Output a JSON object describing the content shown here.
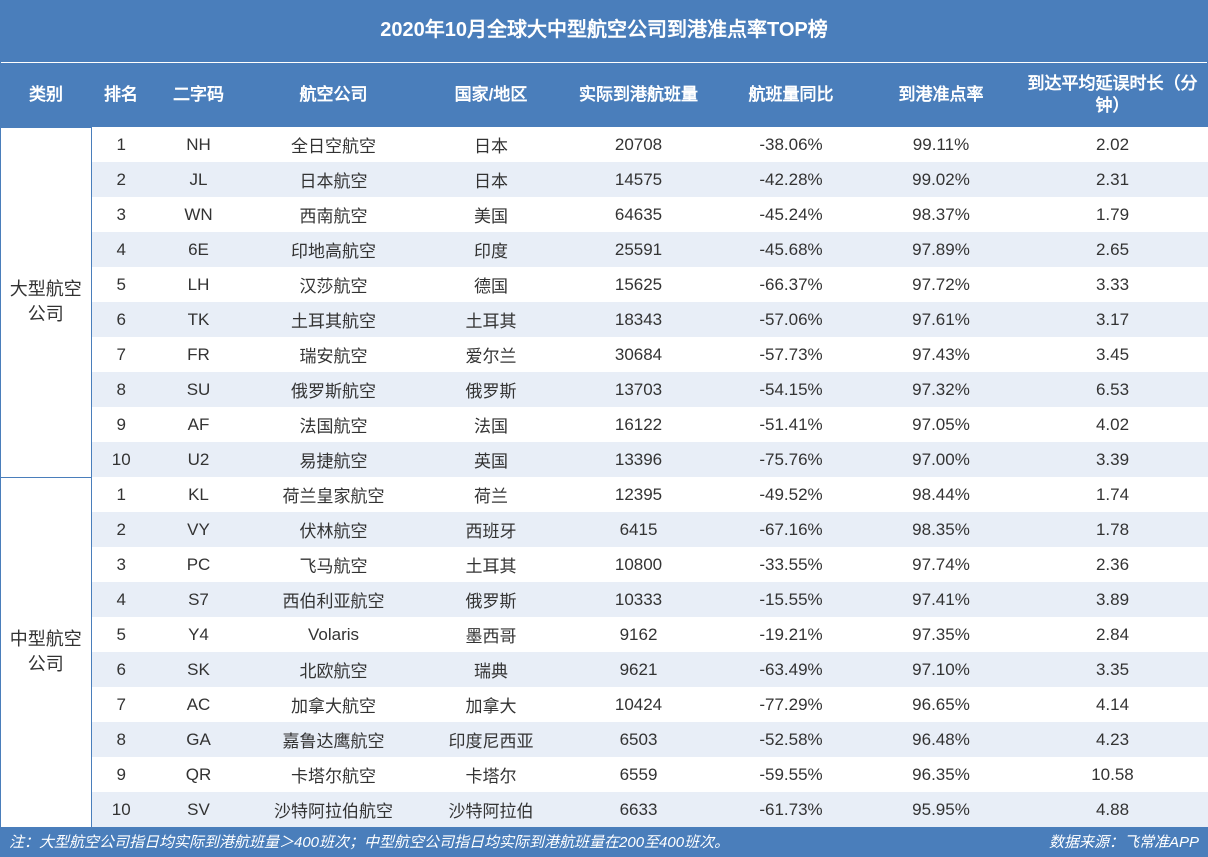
{
  "title": "2020年10月全球大中型航空公司到港准点率TOP榜",
  "columns": [
    "类别",
    "排名",
    "二字码",
    "航空公司",
    "国家/地区",
    "实际到港航班量",
    "航班量同比",
    "到港准点率",
    "到达平均延误时长（分钟）"
  ],
  "groups": [
    {
      "category": "大型航空公司",
      "rows": [
        {
          "rank": "1",
          "code": "NH",
          "name": "全日空航空",
          "country": "日本",
          "flights": "20708",
          "yoy": "-38.06%",
          "ontime": "99.11%",
          "delay": "2.02"
        },
        {
          "rank": "2",
          "code": "JL",
          "name": "日本航空",
          "country": "日本",
          "flights": "14575",
          "yoy": "-42.28%",
          "ontime": "99.02%",
          "delay": "2.31"
        },
        {
          "rank": "3",
          "code": "WN",
          "name": "西南航空",
          "country": "美国",
          "flights": "64635",
          "yoy": "-45.24%",
          "ontime": "98.37%",
          "delay": "1.79"
        },
        {
          "rank": "4",
          "code": "6E",
          "name": "印地高航空",
          "country": "印度",
          "flights": "25591",
          "yoy": "-45.68%",
          "ontime": "97.89%",
          "delay": "2.65"
        },
        {
          "rank": "5",
          "code": "LH",
          "name": "汉莎航空",
          "country": "德国",
          "flights": "15625",
          "yoy": "-66.37%",
          "ontime": "97.72%",
          "delay": "3.33"
        },
        {
          "rank": "6",
          "code": "TK",
          "name": "土耳其航空",
          "country": "土耳其",
          "flights": "18343",
          "yoy": "-57.06%",
          "ontime": "97.61%",
          "delay": "3.17"
        },
        {
          "rank": "7",
          "code": "FR",
          "name": "瑞安航空",
          "country": "爱尔兰",
          "flights": "30684",
          "yoy": "-57.73%",
          "ontime": "97.43%",
          "delay": "3.45"
        },
        {
          "rank": "8",
          "code": "SU",
          "name": "俄罗斯航空",
          "country": "俄罗斯",
          "flights": "13703",
          "yoy": "-54.15%",
          "ontime": "97.32%",
          "delay": "6.53"
        },
        {
          "rank": "9",
          "code": "AF",
          "name": "法国航空",
          "country": "法国",
          "flights": "16122",
          "yoy": "-51.41%",
          "ontime": "97.05%",
          "delay": "4.02"
        },
        {
          "rank": "10",
          "code": "U2",
          "name": "易捷航空",
          "country": "英国",
          "flights": "13396",
          "yoy": "-75.76%",
          "ontime": "97.00%",
          "delay": "3.39"
        }
      ]
    },
    {
      "category": "中型航空公司",
      "rows": [
        {
          "rank": "1",
          "code": "KL",
          "name": "荷兰皇家航空",
          "country": "荷兰",
          "flights": "12395",
          "yoy": "-49.52%",
          "ontime": "98.44%",
          "delay": "1.74"
        },
        {
          "rank": "2",
          "code": "VY",
          "name": "伏林航空",
          "country": "西班牙",
          "flights": "6415",
          "yoy": "-67.16%",
          "ontime": "98.35%",
          "delay": "1.78"
        },
        {
          "rank": "3",
          "code": "PC",
          "name": "飞马航空",
          "country": "土耳其",
          "flights": "10800",
          "yoy": "-33.55%",
          "ontime": "97.74%",
          "delay": "2.36"
        },
        {
          "rank": "4",
          "code": "S7",
          "name": "西伯利亚航空",
          "country": "俄罗斯",
          "flights": "10333",
          "yoy": "-15.55%",
          "ontime": "97.41%",
          "delay": "3.89"
        },
        {
          "rank": "5",
          "code": "Y4",
          "name": "Volaris",
          "country": "墨西哥",
          "flights": "9162",
          "yoy": "-19.21%",
          "ontime": "97.35%",
          "delay": "2.84"
        },
        {
          "rank": "6",
          "code": "SK",
          "name": "北欧航空",
          "country": "瑞典",
          "flights": "9621",
          "yoy": "-63.49%",
          "ontime": "97.10%",
          "delay": "3.35"
        },
        {
          "rank": "7",
          "code": "AC",
          "name": "加拿大航空",
          "country": "加拿大",
          "flights": "10424",
          "yoy": "-77.29%",
          "ontime": "96.65%",
          "delay": "4.14"
        },
        {
          "rank": "8",
          "code": "GA",
          "name": "嘉鲁达鹰航空",
          "country": "印度尼西亚",
          "flights": "6503",
          "yoy": "-52.58%",
          "ontime": "96.48%",
          "delay": "4.23"
        },
        {
          "rank": "9",
          "code": "QR",
          "name": "卡塔尔航空",
          "country": "卡塔尔",
          "flights": "6559",
          "yoy": "-59.55%",
          "ontime": "96.35%",
          "delay": "10.58"
        },
        {
          "rank": "10",
          "code": "SV",
          "name": "沙特阿拉伯航空",
          "country": "沙特阿拉伯",
          "flights": "6633",
          "yoy": "-61.73%",
          "ontime": "95.95%",
          "delay": "4.88"
        }
      ]
    }
  ],
  "footnote_left": "注：大型航空公司指日均实际到港航班量＞400班次；中型航空公司指日均实际到港航班量在200至400班次。",
  "footnote_right": "数据来源：飞常准APP",
  "style": {
    "header_bg": "#4a7ebb",
    "header_fg": "#ffffff",
    "row_even_bg": "#ffffff",
    "row_odd_bg": "#e8eef7",
    "border_color": "#4a7ebb",
    "text_color": "#333333",
    "title_fontsize": 20,
    "header_fontsize": 17,
    "cell_fontsize": 17,
    "footnote_fontsize": 15
  }
}
